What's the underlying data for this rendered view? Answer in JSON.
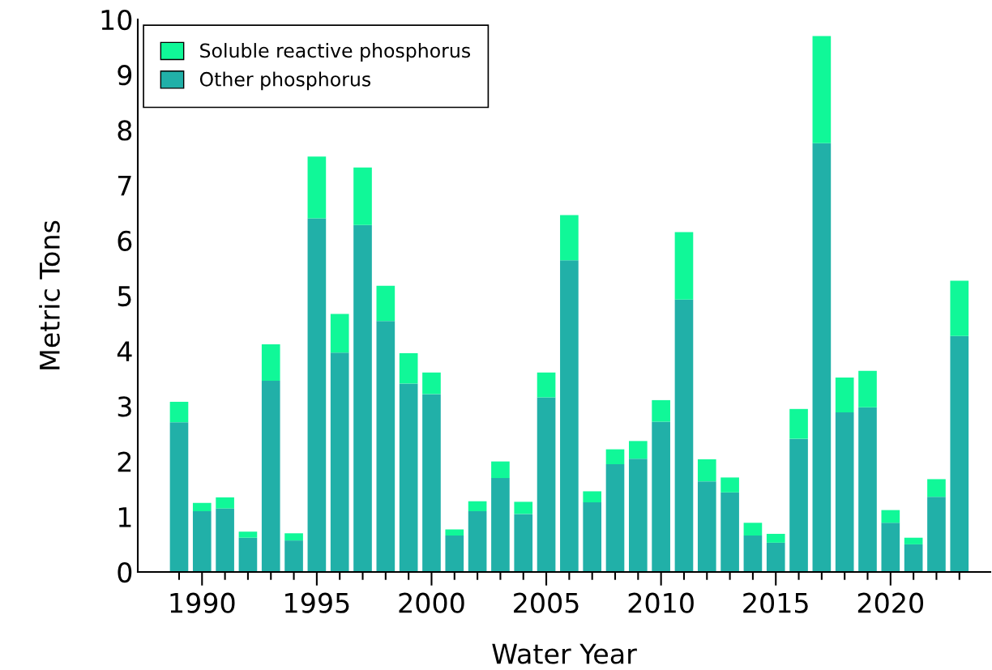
{
  "chart_data": {
    "type": "bar",
    "stacked": true,
    "xlabel": "Water Year",
    "ylabel": "Metric Tons",
    "x": [
      1989,
      1990,
      1991,
      1992,
      1993,
      1994,
      1995,
      1996,
      1997,
      1998,
      1999,
      2000,
      2001,
      2002,
      2003,
      2004,
      2005,
      2006,
      2007,
      2008,
      2009,
      2010,
      2011,
      2012,
      2013,
      2014,
      2015,
      2016,
      2017,
      2018,
      2019,
      2020,
      2021,
      2022,
      2023
    ],
    "series": [
      {
        "name": "Other phosphorus",
        "color": "#21b0a8",
        "values": [
          2.71,
          1.1,
          1.15,
          0.62,
          3.46,
          0.57,
          6.4,
          3.97,
          6.28,
          4.54,
          3.41,
          3.22,
          0.66,
          1.1,
          1.7,
          1.05,
          3.16,
          5.64,
          1.26,
          1.95,
          2.05,
          2.72,
          4.93,
          1.64,
          1.44,
          0.66,
          0.53,
          2.41,
          7.76,
          2.89,
          2.98,
          0.89,
          0.5,
          1.36,
          4.27
        ]
      },
      {
        "name": "Soluble reactive phosphorus",
        "color": "#10f898",
        "values": [
          0.37,
          0.15,
          0.2,
          0.11,
          0.66,
          0.13,
          1.12,
          0.7,
          1.04,
          0.64,
          0.55,
          0.39,
          0.11,
          0.18,
          0.3,
          0.22,
          0.45,
          0.82,
          0.2,
          0.27,
          0.32,
          0.39,
          1.22,
          0.4,
          0.27,
          0.23,
          0.16,
          0.54,
          1.94,
          0.63,
          0.66,
          0.23,
          0.12,
          0.32,
          1.0
        ]
      }
    ],
    "xlim": [
      1987.2,
      2024.35
    ],
    "ylim": [
      0,
      10
    ],
    "xticks": [
      {
        "value": 1989,
        "label": null
      },
      1990,
      {
        "value": 1991,
        "label": null
      },
      {
        "value": 1992,
        "label": null
      },
      {
        "value": 1993,
        "label": null
      },
      {
        "value": 1994,
        "label": null
      },
      1995,
      {
        "value": 1996,
        "label": null
      },
      {
        "value": 1997,
        "label": null
      },
      {
        "value": 1998,
        "label": null
      },
      {
        "value": 1999,
        "label": null
      },
      2000,
      {
        "value": 2001,
        "label": null
      },
      {
        "value": 2002,
        "label": null
      },
      {
        "value": 2003,
        "label": null
      },
      {
        "value": 2004,
        "label": null
      },
      2005,
      {
        "value": 2006,
        "label": null
      },
      {
        "value": 2007,
        "label": null
      },
      {
        "value": 2008,
        "label": null
      },
      {
        "value": 2009,
        "label": null
      },
      2010,
      {
        "value": 2011,
        "label": null
      },
      {
        "value": 2012,
        "label": null
      },
      {
        "value": 2013,
        "label": null
      },
      {
        "value": 2014,
        "label": null
      },
      2015,
      {
        "value": 2016,
        "label": null
      },
      {
        "value": 2017,
        "label": null
      },
      {
        "value": 2018,
        "label": null
      },
      {
        "value": 2019,
        "label": null
      },
      2020,
      {
        "value": 2021,
        "label": null
      },
      {
        "value": 2022,
        "label": null
      },
      {
        "value": 2023,
        "label": null
      }
    ],
    "yticks": [
      0,
      1,
      2,
      3,
      4,
      5,
      6,
      7,
      8,
      9,
      10
    ],
    "legend": "top left",
    "grid": false
  }
}
